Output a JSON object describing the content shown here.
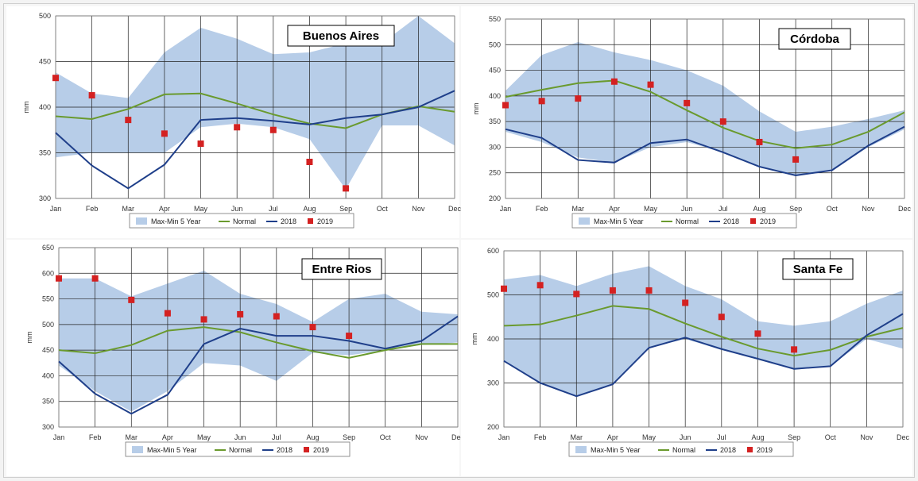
{
  "colors": {
    "band": "#b7cde8",
    "normal": "#6a9a2e",
    "y2018": "#1f3f8a",
    "y2019": "#d42121",
    "grid": "#222222",
    "plot_bg": "#ffffff",
    "panel_bg": "#ffffff"
  },
  "chart_data": [
    {
      "type": "line",
      "title": "Buenos Aires",
      "ylabel": "mm",
      "ylim": [
        300,
        500
      ],
      "yticks": [
        300,
        350,
        400,
        450,
        500
      ],
      "categories": [
        "Jan",
        "Feb",
        "Mar",
        "Apr",
        "May",
        "Jun",
        "Jul",
        "Aug",
        "Sep",
        "Oct",
        "Nov",
        "Dec"
      ],
      "legend": [
        "Max-Min 5 Year",
        "Normal",
        "2018",
        "2019"
      ],
      "band_max": [
        438,
        415,
        410,
        460,
        487,
        475,
        458,
        460,
        470,
        470,
        500,
        470
      ],
      "band_min": [
        345,
        350,
        350,
        350,
        378,
        382,
        378,
        365,
        310,
        380,
        380,
        358
      ],
      "normal": [
        390,
        387,
        398,
        414,
        415,
        404,
        392,
        382,
        377,
        392,
        401,
        395
      ],
      "s2018": [
        372,
        336,
        311,
        337,
        386,
        388,
        385,
        381,
        388,
        392,
        400,
        418
      ],
      "s2019": [
        432,
        413,
        386,
        371,
        360,
        378,
        375,
        340,
        311
      ]
    },
    {
      "type": "line",
      "title": "Córdoba",
      "ylabel": "mm",
      "ylim": [
        200,
        550
      ],
      "yticks": [
        200,
        250,
        300,
        350,
        400,
        450,
        500,
        550
      ],
      "categories": [
        "Jan",
        "Feb",
        "Mar",
        "Apr",
        "May",
        "Jun",
        "Jul",
        "Aug",
        "Sep",
        "Oct",
        "Nov",
        "Dec"
      ],
      "legend": [
        "Max-Min 5 Year",
        "Normal",
        "2018",
        "2019"
      ],
      "band_max": [
        410,
        480,
        505,
        485,
        470,
        450,
        420,
        370,
        330,
        340,
        355,
        372
      ],
      "band_min": [
        330,
        310,
        280,
        270,
        300,
        310,
        290,
        260,
        245,
        255,
        300,
        335
      ],
      "normal": [
        398,
        412,
        425,
        430,
        408,
        372,
        338,
        312,
        298,
        305,
        330,
        368
      ],
      "s2018": [
        335,
        318,
        275,
        270,
        308,
        315,
        290,
        262,
        245,
        255,
        303,
        340
      ],
      "s2019": [
        382,
        390,
        395,
        428,
        422,
        386,
        350,
        310,
        276
      ]
    },
    {
      "type": "line",
      "title": "Entre Rios",
      "ylabel": "mm",
      "ylim": [
        300,
        650
      ],
      "yticks": [
        300,
        350,
        400,
        450,
        500,
        550,
        600,
        650
      ],
      "categories": [
        "Jan",
        "Feb",
        "Mar",
        "Apr",
        "May",
        "Jun",
        "Jul",
        "Aug",
        "Sep",
        "Oct",
        "Nov",
        "Dec"
      ],
      "legend": [
        "Max-Min 5 Year",
        "Normal",
        "2018",
        "2019"
      ],
      "band_max": [
        590,
        590,
        555,
        580,
        605,
        560,
        540,
        505,
        550,
        560,
        525,
        520
      ],
      "band_min": [
        420,
        370,
        330,
        370,
        425,
        420,
        390,
        445,
        440,
        450,
        460,
        465
      ],
      "normal": [
        450,
        444,
        460,
        488,
        495,
        485,
        465,
        448,
        435,
        450,
        462,
        462
      ],
      "s2018": [
        428,
        365,
        326,
        363,
        462,
        492,
        478,
        478,
        468,
        453,
        468,
        516
      ],
      "s2019": [
        590,
        590,
        548,
        522,
        510,
        520,
        516,
        495,
        478
      ]
    },
    {
      "type": "line",
      "title": "Santa Fe",
      "ylabel": "mm",
      "ylim": [
        200,
        600
      ],
      "yticks": [
        200,
        300,
        400,
        500,
        600
      ],
      "categories": [
        "Jan",
        "Feb",
        "Mar",
        "Apr",
        "May",
        "Jun",
        "Jul",
        "Aug",
        "Sep",
        "Oct",
        "Nov",
        "Dec"
      ],
      "legend": [
        "Max-Min 5 Year",
        "Normal",
        "2018",
        "2019"
      ],
      "band_max": [
        535,
        545,
        520,
        548,
        565,
        520,
        490,
        440,
        430,
        440,
        480,
        510
      ],
      "band_min": [
        350,
        300,
        270,
        295,
        380,
        400,
        375,
        355,
        330,
        338,
        400,
        378
      ],
      "normal": [
        430,
        433,
        453,
        475,
        468,
        435,
        405,
        378,
        362,
        375,
        405,
        425
      ],
      "s2018": [
        350,
        300,
        270,
        297,
        380,
        403,
        377,
        355,
        332,
        338,
        408,
        457
      ],
      "s2019": [
        514,
        522,
        502,
        510,
        510,
        482,
        450,
        412,
        376
      ]
    }
  ]
}
